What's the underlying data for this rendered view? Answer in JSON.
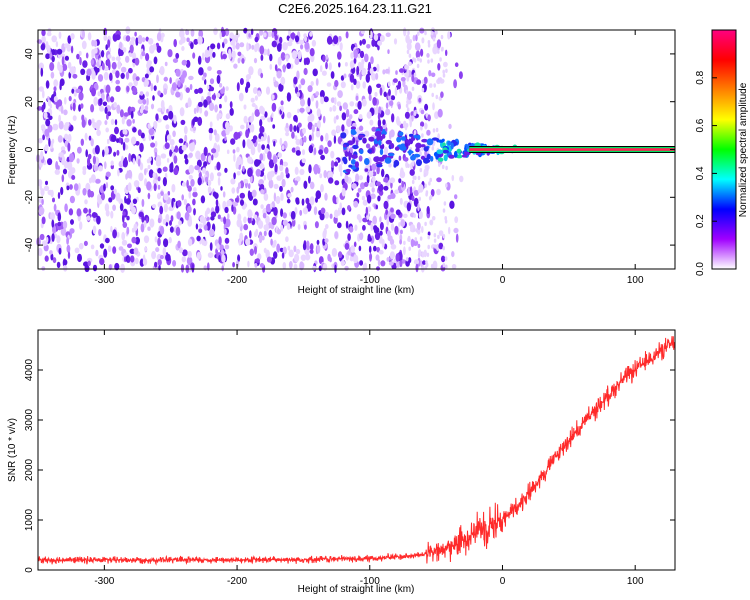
{
  "title": "C2E6.2025.164.23.11.G21",
  "chart_data": [
    {
      "type": "heatmap",
      "title": "C2E6.2025.164.23.11.G21",
      "xlabel": "Height of straight line (km)",
      "ylabel": "Frequency (Hz)",
      "xlim": [
        -350,
        130
      ],
      "ylim": [
        -50,
        50
      ],
      "xticks": [
        -300,
        -200,
        -100,
        0,
        100
      ],
      "yticks": [
        -40,
        -20,
        0,
        20,
        40
      ],
      "xtick_labels": [
        "-300",
        "-200",
        "-100",
        "0",
        "100"
      ],
      "ytick_labels": [
        "-40",
        "-20",
        "0",
        "20",
        "40"
      ],
      "colorbar": {
        "label": "Normalized spectral amplitude",
        "range": [
          0,
          1
        ],
        "ticks": [
          0.0,
          0.2,
          0.4,
          0.6,
          0.8
        ],
        "tick_labels": [
          "0.0",
          "0.2",
          "0.4",
          "0.6",
          "0.8"
        ],
        "colors": [
          "#ffffff",
          "#a000ff",
          "#0000ff",
          "#00ffff",
          "#00ff00",
          "#ffff00",
          "#ff8000",
          "#ff0000",
          "#ff0080"
        ]
      },
      "features": {
        "noise_region_x": [
          -350,
          -40
        ],
        "signal_line_frequency": 0,
        "signal_emerges_x": -45,
        "strong_signal_x": [
          -25,
          130
        ]
      }
    },
    {
      "type": "line",
      "xlabel": "Height of straight line (km)",
      "ylabel": "SNR (10 * v/v)",
      "xlim": [
        -350,
        130
      ],
      "ylim": [
        0,
        4800
      ],
      "xticks": [
        -300,
        -200,
        -100,
        0,
        100
      ],
      "yticks": [
        0,
        1000,
        2000,
        3000,
        4000
      ],
      "xtick_labels": [
        "-300",
        "-200",
        "-100",
        "0",
        "100"
      ],
      "ytick_labels": [
        "0",
        "1000",
        "2000",
        "3000",
        "4000"
      ],
      "color": "#ff0000",
      "series": [
        {
          "x": [
            -350,
            -300,
            -250,
            -200,
            -150,
            -100,
            -70,
            -50,
            -40,
            -30,
            -20,
            -10,
            0,
            10,
            20,
            30,
            40,
            50,
            60,
            70,
            80,
            90,
            100,
            110,
            120,
            130
          ],
          "values": [
            200,
            200,
            200,
            200,
            210,
            230,
            280,
            350,
            450,
            600,
            800,
            900,
            1000,
            1250,
            1550,
            1900,
            2250,
            2600,
            2900,
            3200,
            3500,
            3800,
            4000,
            4200,
            4400,
            4550
          ]
        }
      ]
    }
  ]
}
